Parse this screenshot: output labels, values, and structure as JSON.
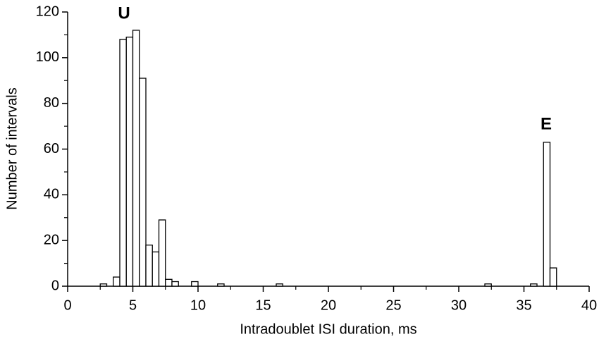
{
  "chart_data": {
    "type": "histogram",
    "xlabel": "Intradoublet ISI duration, ms",
    "ylabel": "Number of intervals",
    "annotations": [
      "U",
      "E"
    ],
    "bins": [
      2.5,
      3,
      3.5,
      4,
      4.5,
      5,
      5.5,
      6,
      6.5,
      7,
      7.5,
      8,
      8.5,
      9,
      9.5,
      10,
      10.5,
      11,
      11.5,
      12,
      12.5,
      13,
      13.5,
      14,
      14.5,
      15,
      15.5,
      16,
      16.5,
      17,
      17.5,
      18,
      18.5,
      19,
      19.5,
      20,
      20.5,
      21,
      21.5,
      22,
      22.5,
      23,
      23.5,
      24,
      24.5,
      25,
      25.5,
      26,
      26.5,
      27,
      27.5,
      28,
      28.5,
      29,
      29.5,
      30,
      30.5,
      31,
      31.5,
      32,
      32.5,
      33,
      33.5,
      34,
      34.5,
      35,
      35.5,
      36,
      36.5,
      37,
      37.5
    ],
    "values": [
      1,
      0,
      4,
      108,
      109,
      112,
      91,
      18,
      15,
      29,
      3,
      2,
      0,
      0,
      2,
      0,
      0,
      0,
      1,
      0,
      0,
      0,
      0,
      0,
      0,
      0,
      0,
      1,
      0,
      0,
      0,
      0,
      0,
      0,
      0,
      0,
      0,
      0,
      0,
      0,
      0,
      0,
      0,
      0,
      0,
      0,
      0,
      0,
      0,
      0,
      0,
      0,
      0,
      0,
      0,
      0,
      0,
      0,
      0,
      1,
      0,
      0,
      0,
      0,
      0,
      0,
      1,
      0,
      63,
      8
    ],
    "color": "#ffffff",
    "edgecolor": "#000000",
    "xlim": [
      0,
      40
    ],
    "xticks": [
      0,
      5,
      10,
      15,
      20,
      25,
      30,
      35,
      40
    ],
    "ylim": [
      0,
      120
    ],
    "yticks": [
      0,
      20,
      40,
      60,
      80,
      100,
      120
    ]
  }
}
